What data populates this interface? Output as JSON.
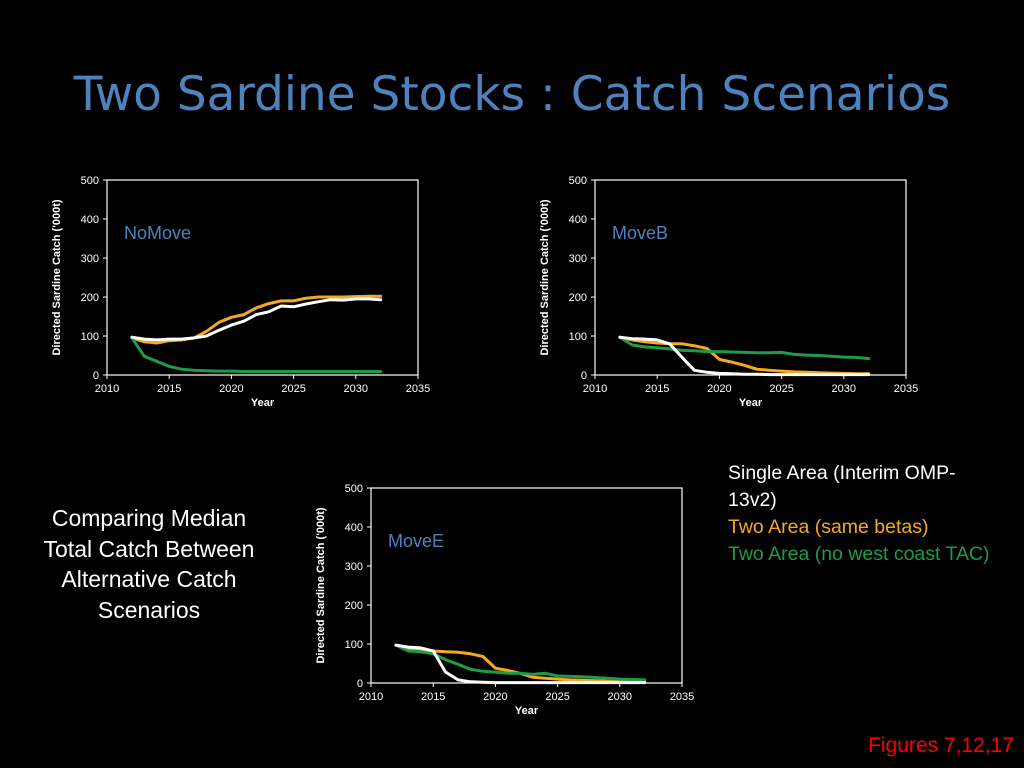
{
  "slide": {
    "title": "Two Sardine Stocks : Catch Scenarios",
    "description": "Comparing Median Total Catch Between Alternative Catch Scenarios",
    "figure_ref": "Figures 7,12,17"
  },
  "legend": [
    {
      "label": "Single Area (Interim OMP-13v2)",
      "color": "#ffffff"
    },
    {
      "label": "Two Area (same betas)",
      "color": "#F7A823"
    },
    {
      "label": "Two Area (no west coast TAC)",
      "color": "#1F9A48"
    }
  ],
  "chart_data": [
    {
      "type": "line",
      "title": "NoMove",
      "xlabel": "Year",
      "ylabel": "Directed Sardine Catch ('000t)",
      "xlim": [
        2010,
        2035
      ],
      "ylim": [
        0,
        500
      ],
      "xticks": [
        2010,
        2015,
        2020,
        2025,
        2030,
        2035
      ],
      "yticks": [
        0,
        100,
        200,
        300,
        400,
        500
      ],
      "x": [
        2012,
        2013,
        2014,
        2015,
        2016,
        2017,
        2018,
        2019,
        2020,
        2021,
        2022,
        2023,
        2024,
        2025,
        2026,
        2027,
        2028,
        2029,
        2030,
        2031,
        2032
      ],
      "series": [
        {
          "color": "#ffffff",
          "values": [
            97,
            92,
            90,
            92,
            92,
            95,
            100,
            115,
            128,
            138,
            155,
            162,
            177,
            175,
            182,
            188,
            193,
            192,
            195,
            195,
            193
          ]
        },
        {
          "color": "#F7A823",
          "values": [
            95,
            85,
            82,
            88,
            90,
            95,
            112,
            135,
            148,
            155,
            172,
            183,
            190,
            190,
            197,
            200,
            200,
            200,
            201,
            202,
            202
          ]
        },
        {
          "color": "#1F9A48",
          "values": [
            95,
            48,
            35,
            22,
            15,
            12,
            11,
            10,
            10,
            9,
            9,
            9,
            9,
            9,
            9,
            9,
            9,
            9,
            9,
            9,
            9
          ]
        }
      ]
    },
    {
      "type": "line",
      "title": "MoveB",
      "xlabel": "Year",
      "ylabel": "Directed Sardine Catch ('000t)",
      "xlim": [
        2010,
        2035
      ],
      "ylim": [
        0,
        500
      ],
      "xticks": [
        2010,
        2015,
        2020,
        2025,
        2030,
        2035
      ],
      "yticks": [
        0,
        100,
        200,
        300,
        400,
        500
      ],
      "x": [
        2012,
        2013,
        2014,
        2015,
        2016,
        2017,
        2018,
        2019,
        2020,
        2021,
        2022,
        2023,
        2024,
        2025,
        2026,
        2027,
        2028,
        2029,
        2030,
        2031,
        2032
      ],
      "series": [
        {
          "color": "#ffffff",
          "values": [
            97,
            93,
            92,
            90,
            80,
            45,
            12,
            7,
            4,
            3,
            2,
            2,
            1,
            1,
            1,
            1,
            1,
            1,
            1,
            1,
            1
          ]
        },
        {
          "color": "#F7A823",
          "values": [
            97,
            90,
            85,
            82,
            80,
            80,
            75,
            68,
            40,
            33,
            25,
            15,
            12,
            10,
            8,
            7,
            6,
            5,
            4,
            3,
            3
          ]
        },
        {
          "color": "#1F9A48",
          "values": [
            97,
            77,
            72,
            70,
            67,
            63,
            62,
            60,
            60,
            59,
            58,
            57,
            57,
            58,
            53,
            51,
            50,
            48,
            46,
            45,
            42
          ]
        }
      ]
    },
    {
      "type": "line",
      "title": "MoveE",
      "xlabel": "Year",
      "ylabel": "Directed Sardine Catch ('000t)",
      "xlim": [
        2010,
        2035
      ],
      "ylim": [
        0,
        500
      ],
      "xticks": [
        2010,
        2015,
        2020,
        2025,
        2030,
        2035
      ],
      "yticks": [
        0,
        100,
        200,
        300,
        400,
        500
      ],
      "x": [
        2012,
        2013,
        2014,
        2015,
        2016,
        2017,
        2018,
        2019,
        2020,
        2021,
        2022,
        2023,
        2024,
        2025,
        2026,
        2027,
        2028,
        2029,
        2030,
        2031,
        2032
      ],
      "series": [
        {
          "color": "#ffffff",
          "values": [
            97,
            92,
            90,
            82,
            28,
            8,
            3,
            2,
            1,
            1,
            1,
            1,
            1,
            1,
            1,
            1,
            1,
            1,
            1,
            1,
            1
          ]
        },
        {
          "color": "#F7A823",
          "values": [
            97,
            85,
            83,
            82,
            80,
            79,
            75,
            68,
            38,
            32,
            25,
            15,
            12,
            10,
            8,
            7,
            6,
            5,
            4,
            3,
            3
          ]
        },
        {
          "color": "#1F9A48",
          "values": [
            97,
            82,
            80,
            75,
            60,
            48,
            35,
            30,
            28,
            25,
            25,
            22,
            25,
            18,
            17,
            16,
            14,
            12,
            10,
            9,
            8
          ]
        }
      ]
    }
  ]
}
